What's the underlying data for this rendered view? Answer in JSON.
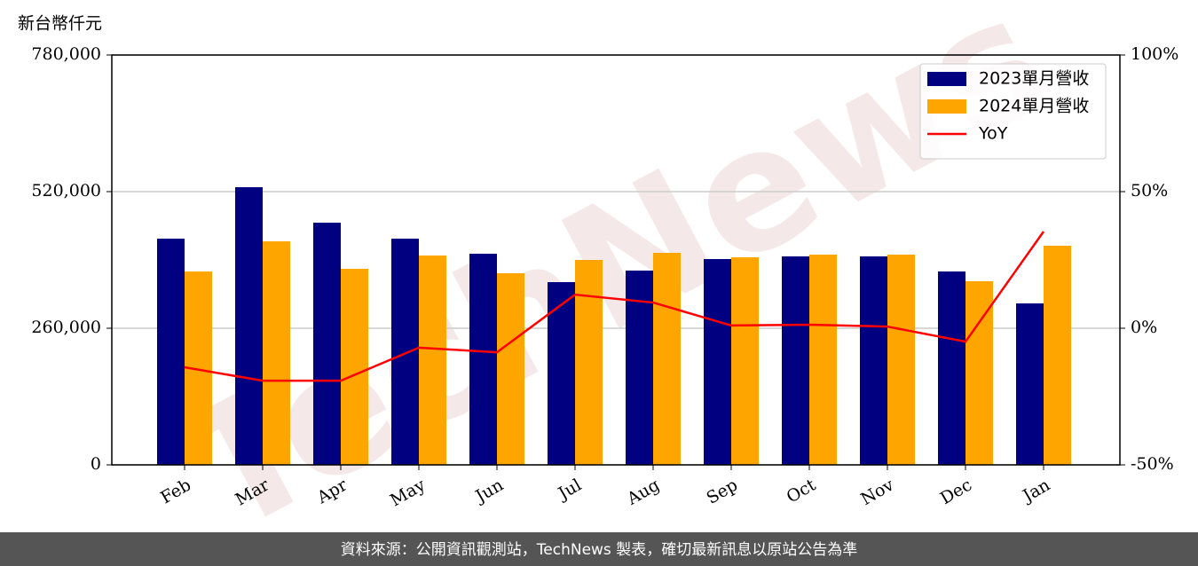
{
  "chart_data": {
    "type": "bar",
    "y_label": "新台幣仟元",
    "watermark": "TechNews",
    "footer": "資料來源：公開資訊觀測站，TechNews 製表，確切最新訊息以原站公告為準",
    "categories": [
      "Feb",
      "Mar",
      "Apr",
      "May",
      "Jun",
      "Jul",
      "Aug",
      "Sep",
      "Oct",
      "Nov",
      "Dec",
      "Jan"
    ],
    "series": [
      {
        "name": "2023單月營收",
        "type": "bar",
        "color": "#000080",
        "values": [
          430500,
          528400,
          460900,
          430500,
          401800,
          347800,
          369700,
          391700,
          396700,
          396700,
          368000,
          307300
        ]
      },
      {
        "name": "2024單月營收",
        "type": "bar",
        "color": "#ffa500",
        "values": [
          368000,
          425400,
          373100,
          398400,
          364700,
          390000,
          403500,
          395000,
          400100,
          400100,
          349500,
          417000
        ]
      },
      {
        "name": "YoY",
        "type": "line",
        "axis": "y2",
        "color": "#ff0000",
        "values": [
          -14.3,
          -19.2,
          -19.2,
          -7.1,
          -8.8,
          12.3,
          9.4,
          1.0,
          1.3,
          0.6,
          -4.9,
          35.4
        ]
      }
    ],
    "ylim": [
      0,
      780000
    ],
    "yticks": [
      0,
      {
        "value": 260000,
        "label": "260,000"
      },
      {
        "value": 520000,
        "label": "520,000"
      },
      {
        "value": 780000,
        "label": "780,000"
      }
    ],
    "y2lim": [
      -50,
      100
    ],
    "y2ticks": [
      {
        "value": -50,
        "label": "-50%"
      },
      {
        "value": 0,
        "label": "0%"
      },
      {
        "value": 50,
        "label": "50%"
      },
      {
        "value": 100,
        "label": "100%"
      }
    ],
    "grid": true,
    "legend": "upper right"
  }
}
